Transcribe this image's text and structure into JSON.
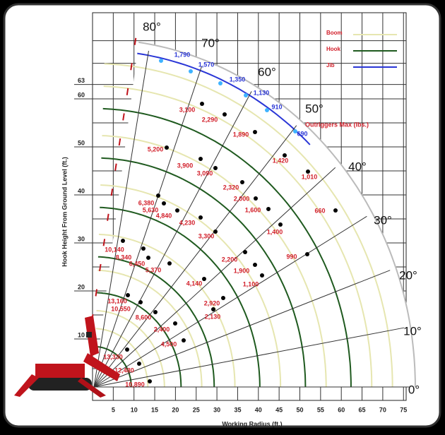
{
  "y_axis_title": "Hook Height From Ground Level (ft.)",
  "x_axis_title": "Working Radius (ft.)",
  "x_ticks": [
    5,
    10,
    15,
    20,
    25,
    30,
    35,
    40,
    45,
    50,
    55,
    60,
    65,
    70,
    75
  ],
  "y_ticks": [
    10,
    20,
    30,
    40,
    50,
    60,
    63
  ],
  "angle_labels": [
    "80°",
    "70°",
    "60°",
    "50°",
    "40°",
    "30°",
    "20°",
    "10°",
    "0°"
  ],
  "legend": [
    "Boom",
    "Hook",
    "Jib"
  ],
  "outriggers_note": "Outriggers Max (lbs.)",
  "jib_loads": [
    "1,790",
    "1,570",
    "1,350",
    "1,130",
    "910",
    "690"
  ],
  "hook_loads": [
    "3,100",
    "2,290",
    "1,890",
    "5,200",
    "1,420",
    "3,900",
    "3,090",
    "1,010",
    "2,320",
    "2,000",
    "6,380",
    "5,630",
    "4,840",
    "1,600",
    "4,230",
    "660",
    "3,300",
    "1,400",
    "10,140",
    "8,340",
    "6,450",
    "5,370",
    "2,200",
    "990",
    "1,900",
    "4,140",
    "1,100",
    "13,160",
    "10,550",
    "8,600",
    "2,920",
    "2,130",
    "2,400",
    "4,500",
    "13,330",
    "12,480",
    "10,890"
  ]
}
